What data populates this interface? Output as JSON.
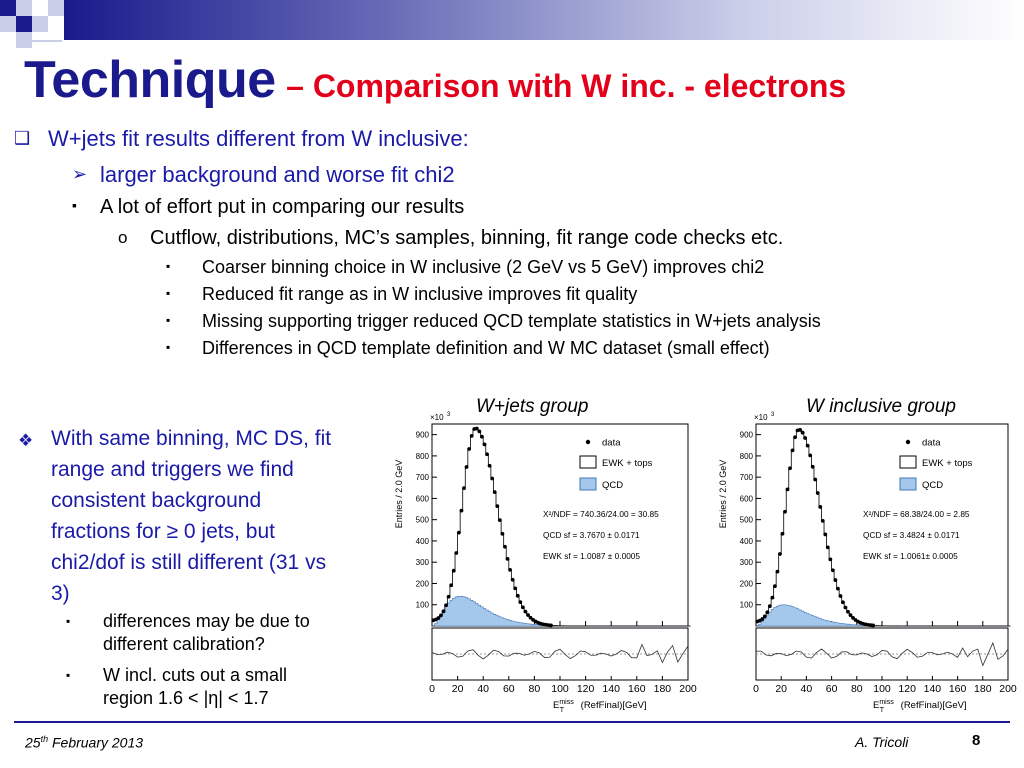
{
  "slide": {
    "title_main": "Technique",
    "title_sub": "– Comparison with W inc. - electrons",
    "bullets": [
      {
        "text": "W+jets fit results different from W inclusive:",
        "marker": "❑"
      },
      {
        "text": "larger background and worse fit chi2",
        "marker": "➢"
      },
      {
        "text": "A lot of effort put in comparing our results",
        "marker": "▪"
      },
      {
        "text": "Cutflow, distributions, MC’s samples, binning, fit range code checks etc.",
        "marker": "o"
      },
      {
        "text": "Coarser binning choice in W inclusive (2 GeV vs 5 GeV) improves chi2",
        "marker": "▪"
      },
      {
        "text": "Reduced fit range as in W inclusive improves fit quality",
        "marker": "▪"
      },
      {
        "text": "Missing supporting trigger reduced QCD template statistics in W+jets analysis",
        "marker": "▪"
      },
      {
        "text": "Differences in QCD template definition and W MC dataset (small effect)",
        "marker": "▪"
      }
    ],
    "left_block": {
      "marker": "❖",
      "lines": [
        "With same binning, MC DS, fit",
        "range and triggers we find",
        "consistent background",
        "fractions for ≥ 0 jets, but",
        "chi2/dof is still different (31 vs",
        "3)"
      ],
      "subbullets": [
        {
          "marker": "▪",
          "lines": [
            "differences may be due to",
            "different calibration?"
          ]
        },
        {
          "marker": "▪",
          "lines": [
            "W incl. cuts out a small",
            "region 1.6 < |η| < 1.7"
          ]
        }
      ]
    },
    "footer": {
      "date_day": "25",
      "date_sup": "th",
      "date_rest": "February  2013",
      "author": "A. Tricoli",
      "page": "8"
    }
  },
  "chart_data": [
    {
      "type": "histogram",
      "title": "W+jets group",
      "ylabel": "Entries / 2.0 GeV",
      "yexp": "×10",
      "yexp_power": "3",
      "xlabel_main": "E",
      "xlabel_sup": "miss",
      "xlabel_sub": "T",
      "xlabel_rest": "(RefFinal)[GeV]",
      "xlim": [
        0,
        200
      ],
      "ylim": [
        0,
        950
      ],
      "yticks": [
        100,
        200,
        300,
        400,
        500,
        600,
        700,
        800,
        900
      ],
      "xticks": [
        0,
        20,
        40,
        60,
        80,
        100,
        120,
        140,
        160,
        180,
        200
      ],
      "legend": [
        "data",
        "EWK + tops",
        "QCD"
      ],
      "annotations": [
        "X²/NDF = 740.36/24.00 = 30.85",
        "QCD sf = 3.7670 ± 0.0171",
        "EWK sf = 1.0087 ± 0.0005"
      ],
      "peak": {
        "x": 34,
        "y": 925
      },
      "qcd_peak": {
        "x": 22,
        "y": 140
      },
      "colors": {
        "qcd_fill": "#a4c8ec",
        "data": "#000000"
      }
    },
    {
      "type": "histogram",
      "title": "W inclusive group",
      "ylabel": "Entries / 2.0 GeV",
      "yexp": "×10",
      "yexp_power": "3",
      "xlabel_main": "E",
      "xlabel_sup": "miss",
      "xlabel_sub": "T",
      "xlabel_rest": "(RefFinal)[GeV]",
      "xlim": [
        0,
        200
      ],
      "ylim": [
        0,
        950
      ],
      "yticks": [
        100,
        200,
        300,
        400,
        500,
        600,
        700,
        800,
        900
      ],
      "xticks": [
        0,
        20,
        40,
        60,
        80,
        100,
        120,
        140,
        160,
        180,
        200
      ],
      "legend": [
        "data",
        "EWK + tops",
        "QCD"
      ],
      "annotations": [
        "X²/NDF = 68.38/24.00 = 2.85",
        "QCD sf = 3.4824 ± 0.0171",
        "EWK sf = 1.0061± 0.0005"
      ],
      "peak": {
        "x": 34,
        "y": 920
      },
      "qcd_peak": {
        "x": 22,
        "y": 100
      },
      "colors": {
        "qcd_fill": "#a4c8ec",
        "data": "#000000"
      }
    }
  ]
}
